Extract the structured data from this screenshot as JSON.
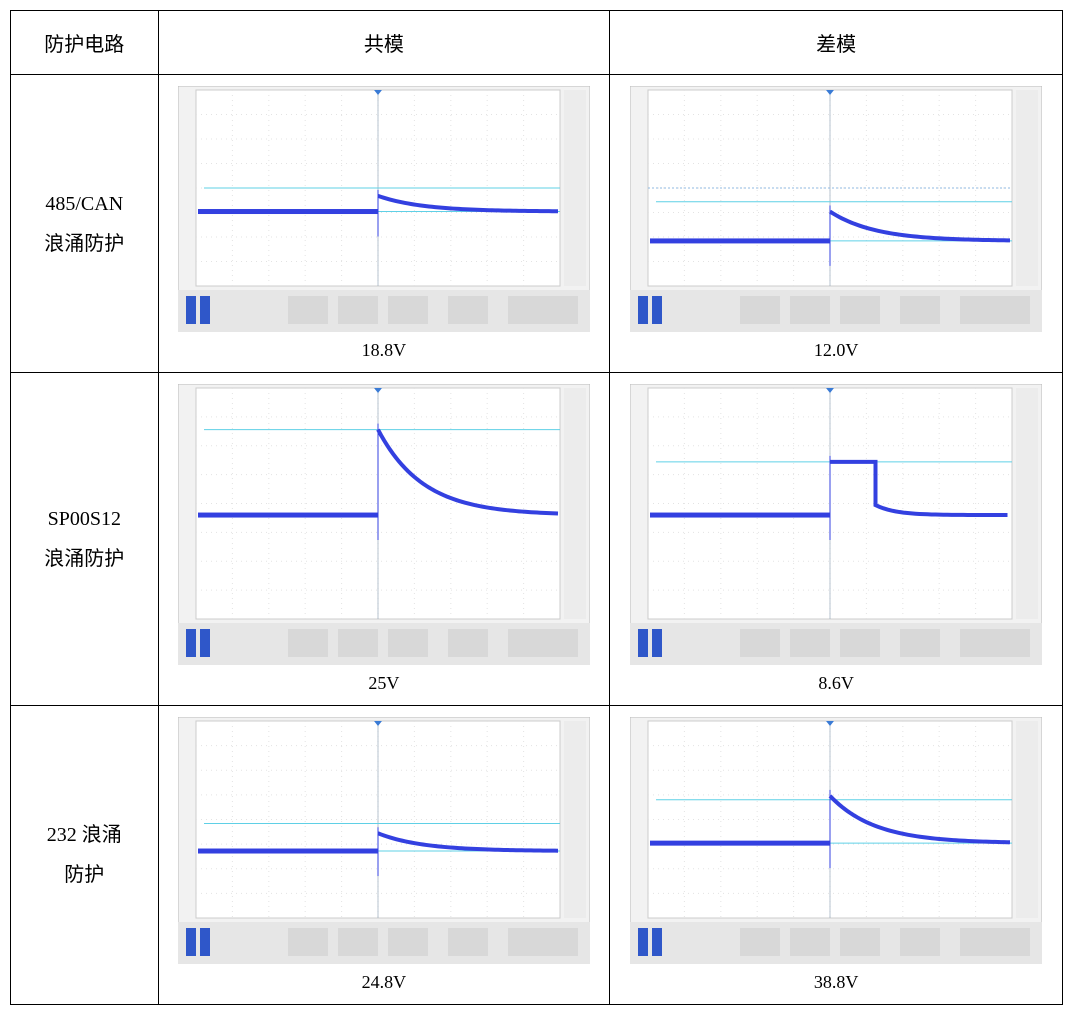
{
  "table": {
    "header": [
      "防护电路",
      "共模",
      "差模"
    ],
    "rows": [
      {
        "label": [
          "485/CAN",
          "浪涌防护"
        ],
        "cells": [
          "18.8V",
          "12.0V"
        ]
      },
      {
        "label": [
          "SP00S12",
          "浪涌防护"
        ],
        "cells": [
          "25V",
          "8.6V"
        ]
      },
      {
        "label": [
          "232 浪涌",
          "防护"
        ],
        "cells": [
          "24.8V",
          "38.8V"
        ]
      }
    ]
  }
}
